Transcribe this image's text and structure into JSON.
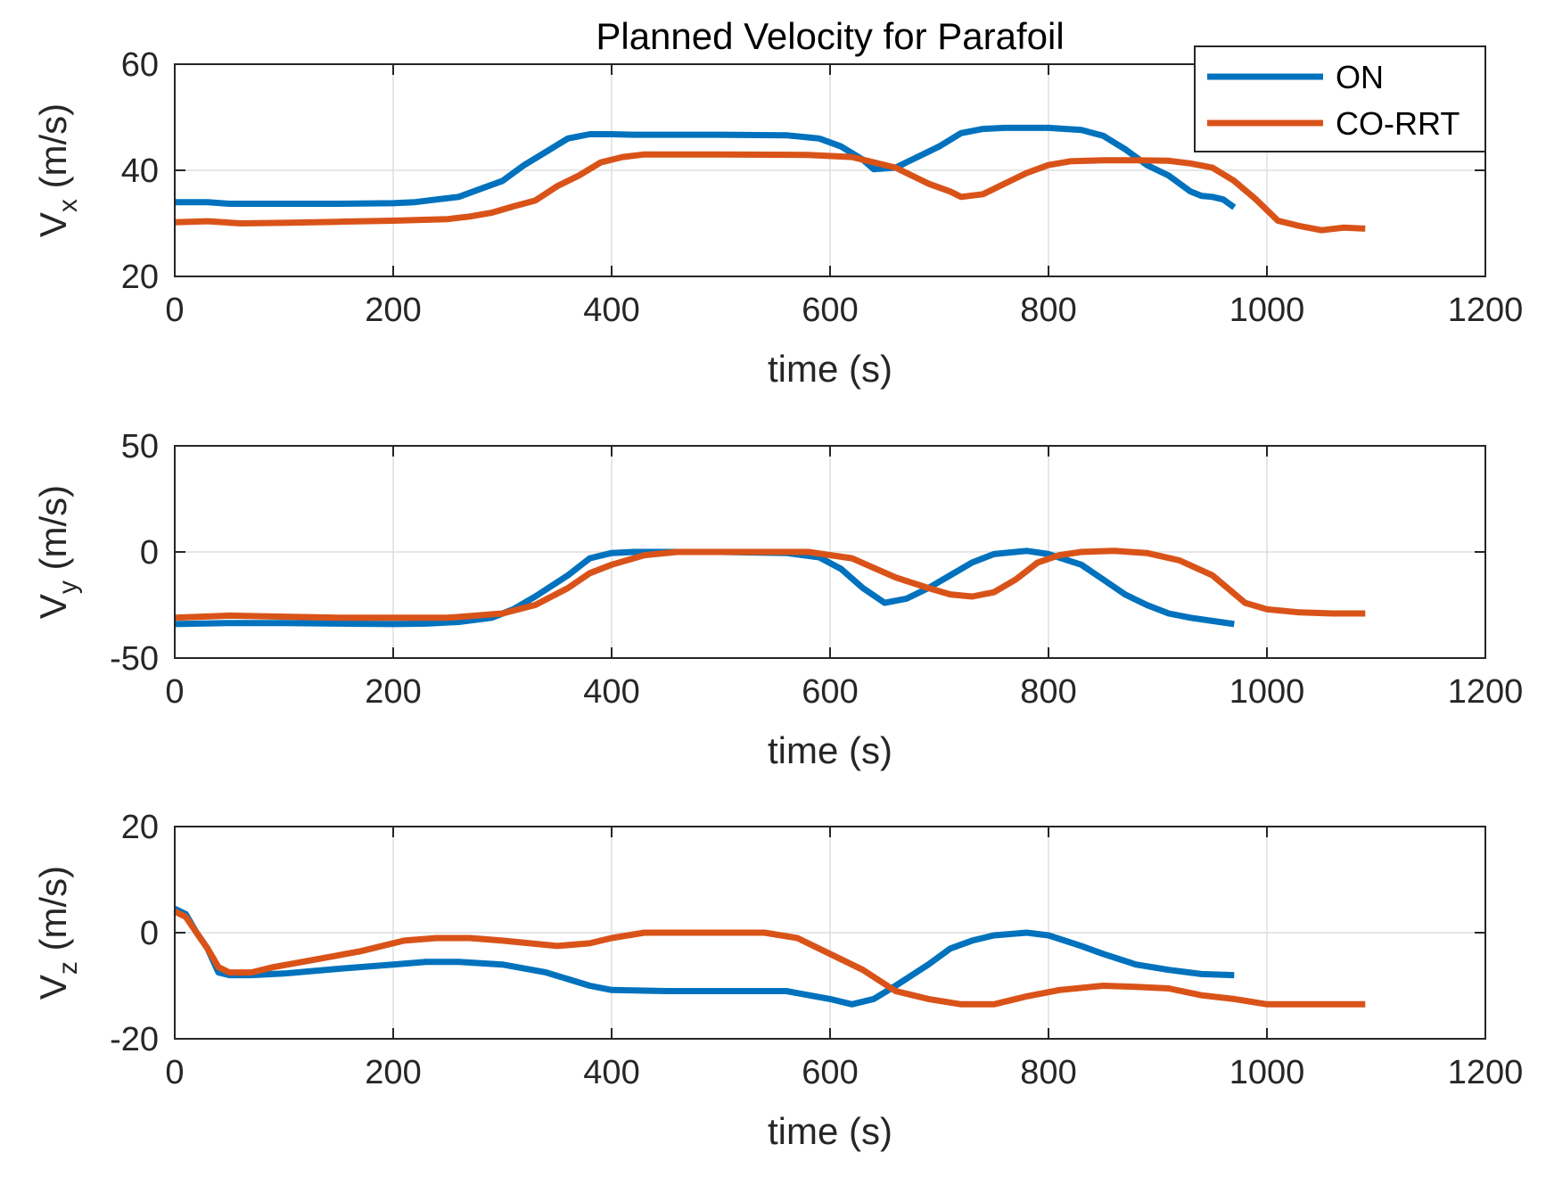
{
  "figure": {
    "title": "Planned Velocity for Parafoil",
    "legend": {
      "placement": "top-right",
      "entries": [
        {
          "label": "ON",
          "color": "#0072BD"
        },
        {
          "label": "CO-RRT",
          "color": "#D95319"
        }
      ]
    }
  },
  "chart_data": [
    {
      "type": "line",
      "title": "Planned Velocity for Parafoil",
      "ylabel_main": "V",
      "ylabel_sub": "x",
      "ylabel_unit": " (m/s)",
      "xlabel": "time (s)",
      "xlim": [
        0,
        1200
      ],
      "ylim": [
        20,
        60
      ],
      "xticks": [
        0,
        200,
        400,
        600,
        800,
        1000,
        1200
      ],
      "yticks": [
        20,
        40,
        60
      ],
      "grid": true,
      "series": [
        {
          "name": "ON",
          "color": "#0072BD",
          "x": [
            0,
            30,
            50,
            100,
            150,
            200,
            220,
            240,
            260,
            280,
            300,
            320,
            340,
            360,
            380,
            400,
            420,
            500,
            560,
            590,
            610,
            630,
            640,
            660,
            680,
            700,
            720,
            740,
            760,
            800,
            830,
            850,
            870,
            890,
            910,
            930,
            940,
            950,
            960,
            970
          ],
          "y": [
            34,
            34,
            33.7,
            33.7,
            33.7,
            33.8,
            34,
            34.5,
            35,
            36.5,
            38,
            41,
            43.5,
            46,
            46.8,
            46.8,
            46.7,
            46.7,
            46.6,
            46,
            44.5,
            42,
            40.2,
            40.5,
            42.5,
            44.5,
            47,
            47.8,
            48,
            48,
            47.6,
            46.5,
            44,
            41,
            39,
            36,
            35.2,
            35,
            34.5,
            33
          ]
        },
        {
          "name": "CO-RRT",
          "color": "#D95319",
          "x": [
            0,
            30,
            60,
            100,
            150,
            200,
            250,
            270,
            290,
            310,
            330,
            350,
            370,
            390,
            410,
            430,
            500,
            580,
            620,
            660,
            690,
            710,
            720,
            740,
            760,
            780,
            800,
            820,
            850,
            880,
            910,
            930,
            950,
            970,
            990,
            1010,
            1030,
            1050,
            1070,
            1090
          ],
          "y": [
            30.2,
            30.4,
            30,
            30.1,
            30.3,
            30.5,
            30.8,
            31.3,
            32,
            33.2,
            34.3,
            37,
            39,
            41.5,
            42.5,
            43,
            43,
            42.9,
            42.5,
            40.5,
            37.5,
            36,
            35,
            35.5,
            37.5,
            39.5,
            41,
            41.7,
            41.9,
            41.9,
            41.8,
            41.3,
            40.5,
            38,
            34.5,
            30.5,
            29.5,
            28.7,
            29.2,
            29
          ]
        }
      ]
    },
    {
      "type": "line",
      "ylabel_main": "V",
      "ylabel_sub": "y",
      "ylabel_unit": " (m/s)",
      "xlabel": "time (s)",
      "xlim": [
        0,
        1200
      ],
      "ylim": [
        -50,
        50
      ],
      "xticks": [
        0,
        200,
        400,
        600,
        800,
        1000,
        1200
      ],
      "yticks": [
        -50,
        0,
        50
      ],
      "grid": true,
      "series": [
        {
          "name": "ON",
          "color": "#0072BD",
          "x": [
            0,
            50,
            100,
            150,
            200,
            230,
            260,
            290,
            310,
            330,
            360,
            380,
            400,
            420,
            450,
            500,
            560,
            590,
            610,
            630,
            650,
            670,
            690,
            710,
            730,
            750,
            780,
            800,
            830,
            850,
            870,
            890,
            910,
            930,
            950,
            970
          ],
          "y": [
            -34,
            -33.5,
            -33.5,
            -33.8,
            -34,
            -33.8,
            -33,
            -31,
            -27,
            -21,
            -11,
            -3,
            -0.5,
            0,
            0,
            0,
            -0.5,
            -2.5,
            -8,
            -17,
            -24,
            -22,
            -17,
            -11,
            -5,
            -1,
            0.5,
            -1,
            -6,
            -13,
            -20,
            -25,
            -29,
            -31,
            -32.5,
            -34
          ]
        },
        {
          "name": "CO-RRT",
          "color": "#D95319",
          "x": [
            0,
            50,
            100,
            150,
            200,
            250,
            300,
            330,
            360,
            380,
            400,
            430,
            460,
            500,
            580,
            620,
            660,
            690,
            710,
            730,
            750,
            770,
            790,
            810,
            830,
            860,
            890,
            920,
            950,
            980,
            1000,
            1030,
            1060,
            1090
          ],
          "y": [
            -31,
            -30,
            -30.5,
            -31,
            -31,
            -31,
            -29,
            -25,
            -17,
            -10,
            -6,
            -1.5,
            0,
            0,
            0,
            -3,
            -12,
            -17,
            -20,
            -21,
            -19,
            -13,
            -5,
            -1.5,
            0,
            0.5,
            -0.5,
            -4,
            -11,
            -24,
            -27,
            -28.5,
            -29,
            -29
          ]
        }
      ]
    },
    {
      "type": "line",
      "ylabel_main": "V",
      "ylabel_sub": "z",
      "ylabel_unit": " (m/s)",
      "xlabel": "time (s)",
      "xlim": [
        0,
        1200
      ],
      "ylim": [
        -20,
        20
      ],
      "xticks": [
        0,
        200,
        400,
        600,
        800,
        1000,
        1200
      ],
      "yticks": [
        -20,
        0,
        20
      ],
      "grid": true,
      "series": [
        {
          "name": "ON",
          "color": "#0072BD",
          "x": [
            0,
            10,
            20,
            30,
            40,
            50,
            70,
            100,
            150,
            200,
            230,
            260,
            300,
            340,
            380,
            400,
            450,
            500,
            560,
            600,
            620,
            640,
            660,
            690,
            710,
            730,
            750,
            780,
            800,
            830,
            850,
            880,
            910,
            940,
            970
          ],
          "y": [
            4.5,
            3.5,
            0,
            -3,
            -7.5,
            -8,
            -8,
            -7.7,
            -6.8,
            -6,
            -5.5,
            -5.5,
            -6,
            -7.5,
            -10,
            -10.8,
            -11,
            -11,
            -11,
            -12.5,
            -13.5,
            -12.5,
            -10,
            -6,
            -3,
            -1.5,
            -0.5,
            0,
            -0.5,
            -2.5,
            -4,
            -6,
            -7,
            -7.8,
            -8
          ]
        },
        {
          "name": "CO-RRT",
          "color": "#D95319",
          "x": [
            0,
            10,
            20,
            30,
            40,
            50,
            70,
            90,
            130,
            170,
            210,
            240,
            270,
            300,
            350,
            380,
            400,
            430,
            460,
            500,
            540,
            570,
            600,
            630,
            660,
            690,
            720,
            750,
            780,
            810,
            850,
            880,
            910,
            940,
            970,
            1000,
            1040,
            1090
          ],
          "y": [
            4,
            3,
            0,
            -3,
            -6.5,
            -7.5,
            -7.5,
            -6.5,
            -5,
            -3.5,
            -1.5,
            -1,
            -1,
            -1.5,
            -2.5,
            -2,
            -1,
            0,
            0,
            0,
            0,
            -1,
            -4,
            -7,
            -11,
            -12.5,
            -13.5,
            -13.5,
            -12,
            -10.8,
            -10,
            -10.2,
            -10.5,
            -11.8,
            -12.5,
            -13.5,
            -13.5,
            -13.5
          ]
        }
      ]
    }
  ]
}
